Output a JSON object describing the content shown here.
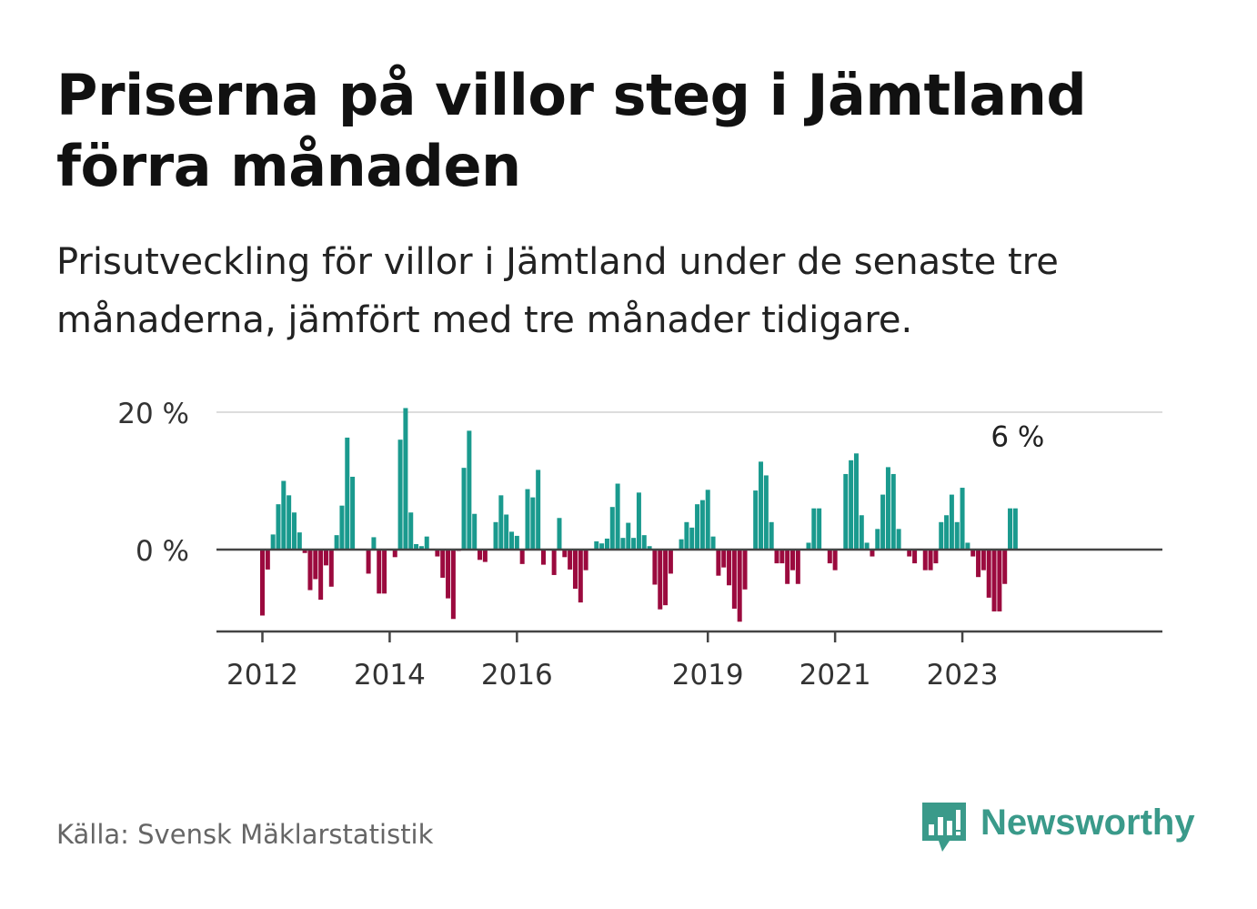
{
  "title": "Priserna på villor steg i Jämtland förra månaden",
  "subtitle": "Prisutveckling för villor i Jämtland under de senaste tre månaderna, jämfört med tre månader tidigare.",
  "source": "Källa: Svensk Mäklarstatistik",
  "brand": {
    "name": "Newsworthy",
    "icon": "bar-chart-speech-bubble-icon"
  },
  "colors": {
    "positive": "#1a9a8e",
    "negative": "#9b0a3e",
    "brand": "#3a9a8a",
    "gridline": "#dddddd",
    "axis": "#444444"
  },
  "chart_data": {
    "type": "bar",
    "title": "Priserna på villor steg i Jämtland förra månaden",
    "xlabel": "",
    "ylabel": "",
    "ylim": [
      -12,
      20
    ],
    "yticks": [
      0,
      20
    ],
    "ytick_labels": [
      "0 %",
      "20 %"
    ],
    "grid": true,
    "annotation": {
      "label": "6 %",
      "value": 6,
      "target": "last-bar"
    },
    "x_start": "2012-01",
    "x_ticks": [
      {
        "label": "2012",
        "date": "2012-01"
      },
      {
        "label": "2014",
        "date": "2014-01"
      },
      {
        "label": "2016",
        "date": "2016-01"
      },
      {
        "label": "2019",
        "date": "2019-01"
      },
      {
        "label": "2021",
        "date": "2021-01"
      },
      {
        "label": "2023",
        "date": "2023-01"
      }
    ],
    "values": [
      -9.6,
      -2.9,
      2.2,
      6.6,
      10.0,
      7.9,
      5.4,
      2.5,
      -0.5,
      -5.9,
      -4.3,
      -7.3,
      -2.3,
      -5.4,
      2.1,
      6.4,
      16.3,
      10.6,
      null,
      null,
      -3.5,
      1.8,
      -6.4,
      -6.4,
      null,
      -1.1,
      16.0,
      20.6,
      5.4,
      0.8,
      0.5,
      1.9,
      null,
      -1.0,
      -4.1,
      -7.1,
      -10.1,
      -0.2,
      11.9,
      17.3,
      5.2,
      -1.5,
      -1.8,
      null,
      4.0,
      7.9,
      5.1,
      2.6,
      2.0,
      -2.1,
      8.8,
      7.6,
      11.6,
      -2.2,
      null,
      -3.7,
      4.6,
      -1.1,
      -2.9,
      -5.7,
      -7.7,
      -3.0,
      null,
      1.2,
      0.9,
      1.6,
      6.2,
      9.6,
      1.7,
      3.9,
      1.7,
      8.3,
      2.1,
      0.5,
      -5.1,
      -8.7,
      -8.1,
      -3.5,
      null,
      1.5,
      4.0,
      3.2,
      6.6,
      7.2,
      8.7,
      1.9,
      -3.8,
      -2.6,
      -5.2,
      -8.6,
      -10.5,
      -5.8,
      null,
      8.6,
      12.8,
      10.8,
      4.0,
      -2.0,
      -2.0,
      -5.0,
      -3.0,
      -5.0,
      null,
      1.0,
      6.0,
      6.0,
      null,
      -2.0,
      -3.0,
      null,
      11.0,
      13.0,
      14.0,
      5.0,
      1.0,
      -1.0,
      3.0,
      8.0,
      12.0,
      11.0,
      3.0,
      null,
      -1.0,
      -2.0,
      null,
      -3.0,
      -3.0,
      -2.0,
      4.0,
      5.0,
      8.0,
      4.0,
      9.0,
      1.0,
      -1.0,
      -4.0,
      -3.0,
      -7.0,
      -9.0,
      -9.0,
      -5.0,
      6.0,
      6.0
    ]
  }
}
